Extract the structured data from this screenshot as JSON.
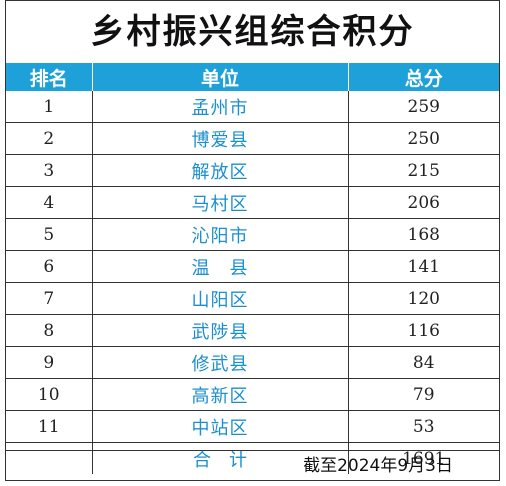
{
  "title": "乡村振兴组综合积分",
  "columns": {
    "rank": "排名",
    "unit": "单位",
    "score": "总分"
  },
  "rows": [
    {
      "rank": "1",
      "unit": "孟州市",
      "score": "259"
    },
    {
      "rank": "2",
      "unit": "博爱县",
      "score": "250"
    },
    {
      "rank": "3",
      "unit": "解放区",
      "score": "215"
    },
    {
      "rank": "4",
      "unit": "马村区",
      "score": "206"
    },
    {
      "rank": "5",
      "unit": "沁阳市",
      "score": "168"
    },
    {
      "rank": "6",
      "unit": "温　县",
      "score": "141"
    },
    {
      "rank": "7",
      "unit": "山阳区",
      "score": "120"
    },
    {
      "rank": "8",
      "unit": "武陟县",
      "score": "116"
    },
    {
      "rank": "9",
      "unit": "修武县",
      "score": "84"
    },
    {
      "rank": "10",
      "unit": "高新区",
      "score": "79"
    },
    {
      "rank": "11",
      "unit": "中站区",
      "score": "53"
    }
  ],
  "total": {
    "label": "合　计",
    "score": "1691"
  },
  "footer": "截至2024年9月3日",
  "colors": {
    "header_bg": "#1ea0d8",
    "unit_text": "#1b8fcf"
  }
}
